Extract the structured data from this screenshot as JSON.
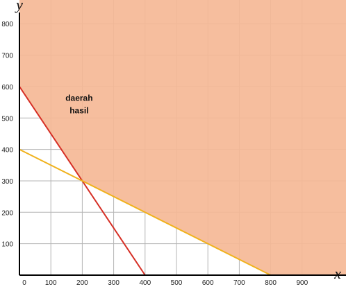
{
  "chart_data": {
    "type": "line",
    "title": "",
    "xlabel": "x",
    "ylabel": "y",
    "xlim": [
      0,
      970
    ],
    "ylim": [
      0,
      820
    ],
    "grid": true,
    "x_ticks": [
      0,
      100,
      200,
      300,
      400,
      500,
      600,
      700,
      800,
      900
    ],
    "y_ticks": [
      100,
      200,
      300,
      400,
      500,
      600,
      700,
      800
    ],
    "colors": {
      "region": "#f5b896",
      "grid": "#b4b4b4",
      "axis": "#000000",
      "line_red": "#d62f25",
      "line_yellow": "#f0b21c"
    },
    "series": [
      {
        "x": [
          0,
          400
        ],
        "y": [
          600,
          0
        ],
        "color": "#d62f25"
      },
      {
        "x": [
          0,
          800
        ],
        "y": [
          400,
          0
        ],
        "color": "#f0b21c"
      }
    ],
    "shaded_region": {
      "boundary": [
        [
          0,
          600
        ],
        [
          200,
          300
        ],
        [
          800,
          0
        ]
      ],
      "label_lines": [
        "daerah",
        "hasil"
      ]
    }
  }
}
